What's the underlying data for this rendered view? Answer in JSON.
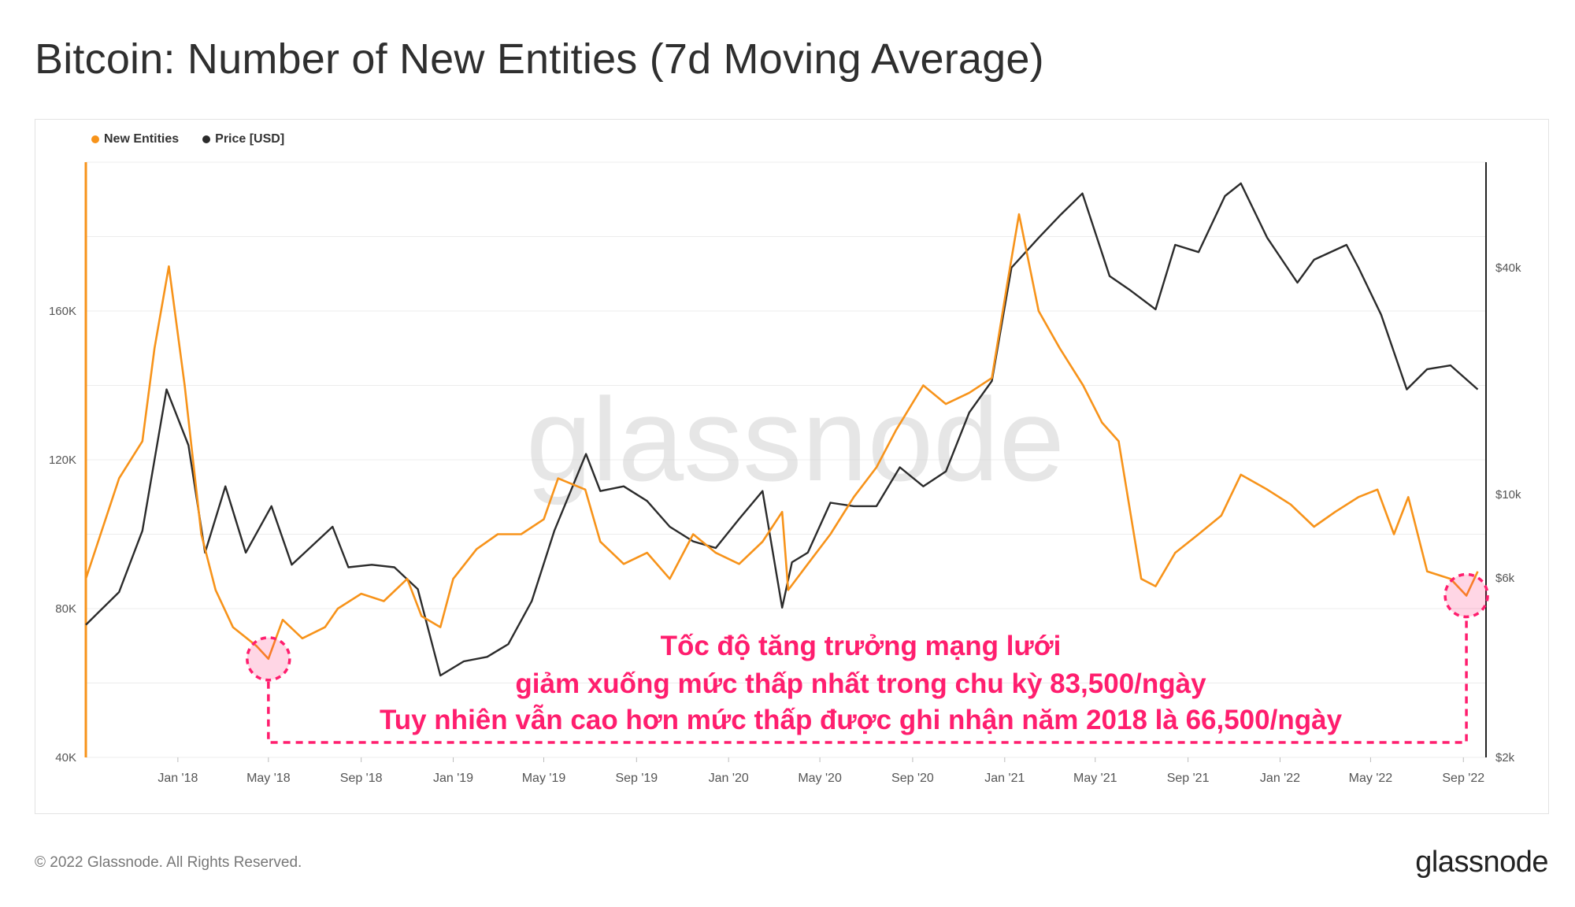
{
  "title": "Bitcoin: Number of New Entities (7d Moving Average)",
  "legend": [
    {
      "label": "New Entities",
      "color": "#f7931a"
    },
    {
      "label": "Price [USD]",
      "color": "#2b2b2b"
    }
  ],
  "watermark": "glassnode",
  "footer": {
    "copyright": "© 2022 Glassnode. All Rights Reserved.",
    "logo": "glassnode"
  },
  "annotation": {
    "lines": [
      "Tốc độ tăng trưởng mạng lưới",
      "giảm xuống mức thấp nhất trong chu kỳ 83,500/ngày",
      "Tuy nhiên vẫn cao hơn mức thấp được ghi nhận năm 2018 là 66,500/ngày"
    ],
    "color": "#ff1e6e"
  },
  "chart_data": {
    "type": "line",
    "x_ticks": [
      "Jan '18",
      "May '18",
      "Sep '18",
      "Jan '19",
      "May '19",
      "Sep '19",
      "Jan '20",
      "May '20",
      "Sep '20",
      "Jan '21",
      "May '21",
      "Sep '21",
      "Jan '22",
      "May '22",
      "Sep '22"
    ],
    "y_left_ticks": [
      "40K",
      "80K",
      "120K",
      "160K"
    ],
    "y_right_ticks": [
      "$2k",
      "$6k",
      "$10k",
      "$40k"
    ],
    "y_left_range": [
      40000,
      200000
    ],
    "y_right_scale": "log",
    "grid": true,
    "legend_position": "top-left",
    "series": [
      {
        "name": "New Entities",
        "color": "#f7931a",
        "axis": "left",
        "x": [
          "2017-09-01",
          "2017-10-15",
          "2017-11-15",
          "2017-12-01",
          "2017-12-20",
          "2018-01-10",
          "2018-02-01",
          "2018-02-20",
          "2018-03-15",
          "2018-04-15",
          "2018-05-01",
          "2018-05-20",
          "2018-06-15",
          "2018-07-15",
          "2018-08-01",
          "2018-09-01",
          "2018-10-01",
          "2018-11-01",
          "2018-11-20",
          "2018-12-15",
          "2019-01-01",
          "2019-02-01",
          "2019-03-01",
          "2019-04-01",
          "2019-05-01",
          "2019-05-20",
          "2019-06-25",
          "2019-07-15",
          "2019-08-15",
          "2019-09-15",
          "2019-10-15",
          "2019-11-15",
          "2019-12-15",
          "2020-01-15",
          "2020-02-15",
          "2020-03-12",
          "2020-03-20",
          "2020-04-15",
          "2020-05-15",
          "2020-06-15",
          "2020-07-15",
          "2020-08-10",
          "2020-09-15",
          "2020-10-15",
          "2020-11-15",
          "2020-12-15",
          "2021-01-05",
          "2021-01-20",
          "2021-02-15",
          "2021-03-15",
          "2021-04-15",
          "2021-05-10",
          "2021-06-01",
          "2021-07-01",
          "2021-07-20",
          "2021-08-15",
          "2021-09-15",
          "2021-10-15",
          "2021-11-10",
          "2021-12-15",
          "2022-01-15",
          "2022-02-15",
          "2022-03-15",
          "2022-04-15",
          "2022-05-10",
          "2022-06-01",
          "2022-06-20",
          "2022-07-15",
          "2022-08-15",
          "2022-09-05",
          "2022-09-20"
        ],
        "y": [
          88000,
          115000,
          125000,
          150000,
          172000,
          140000,
          100000,
          85000,
          75000,
          70000,
          66500,
          77000,
          72000,
          75000,
          80000,
          84000,
          82000,
          88000,
          78000,
          75000,
          88000,
          96000,
          100000,
          100000,
          104000,
          115000,
          112000,
          98000,
          92000,
          95000,
          88000,
          100000,
          95000,
          92000,
          98000,
          106000,
          85000,
          92000,
          100000,
          110000,
          118000,
          128000,
          140000,
          135000,
          138000,
          142000,
          168000,
          186000,
          160000,
          150000,
          140000,
          130000,
          125000,
          88000,
          86000,
          95000,
          100000,
          105000,
          116000,
          112000,
          108000,
          102000,
          106000,
          110000,
          112000,
          100000,
          110000,
          90000,
          88000,
          83500,
          90000
        ]
      },
      {
        "name": "Price [USD]",
        "color": "#2b2b2b",
        "axis": "right",
        "x": [
          "2017-09-01",
          "2017-10-15",
          "2017-11-15",
          "2017-12-17",
          "2018-01-15",
          "2018-02-06",
          "2018-03-05",
          "2018-04-01",
          "2018-05-05",
          "2018-06-01",
          "2018-07-25",
          "2018-08-15",
          "2018-09-15",
          "2018-10-15",
          "2018-11-15",
          "2018-12-15",
          "2019-01-15",
          "2019-02-15",
          "2019-03-15",
          "2019-04-15",
          "2019-05-15",
          "2019-06-26",
          "2019-07-15",
          "2019-08-15",
          "2019-09-15",
          "2019-10-15",
          "2019-11-15",
          "2019-12-15",
          "2020-01-15",
          "2020-02-15",
          "2020-03-12",
          "2020-03-25",
          "2020-04-15",
          "2020-05-15",
          "2020-06-15",
          "2020-07-15",
          "2020-08-15",
          "2020-09-15",
          "2020-10-15",
          "2020-11-15",
          "2020-12-15",
          "2021-01-10",
          "2021-02-15",
          "2021-03-15",
          "2021-04-14",
          "2021-05-20",
          "2021-06-15",
          "2021-07-20",
          "2021-08-15",
          "2021-09-15",
          "2021-10-20",
          "2021-11-10",
          "2021-12-15",
          "2022-01-24",
          "2022-02-15",
          "2022-03-30",
          "2022-04-15",
          "2022-05-15",
          "2022-06-18",
          "2022-07-15",
          "2022-08-15",
          "2022-09-20"
        ],
        "y": [
          4500,
          5500,
          8000,
          19000,
          13500,
          7000,
          10500,
          7000,
          9300,
          6500,
          8200,
          6400,
          6500,
          6400,
          5600,
          3300,
          3600,
          3700,
          4000,
          5200,
          8000,
          12800,
          10200,
          10500,
          9600,
          8200,
          7500,
          7200,
          8600,
          10200,
          5000,
          6600,
          7000,
          9500,
          9300,
          9300,
          11800,
          10500,
          11500,
          16500,
          20000,
          40000,
          48000,
          55000,
          63000,
          38000,
          35000,
          31000,
          46000,
          44000,
          62000,
          67000,
          48000,
          36500,
          42000,
          46000,
          40000,
          30000,
          19000,
          21500,
          22000,
          19000
        ]
      }
    ]
  }
}
